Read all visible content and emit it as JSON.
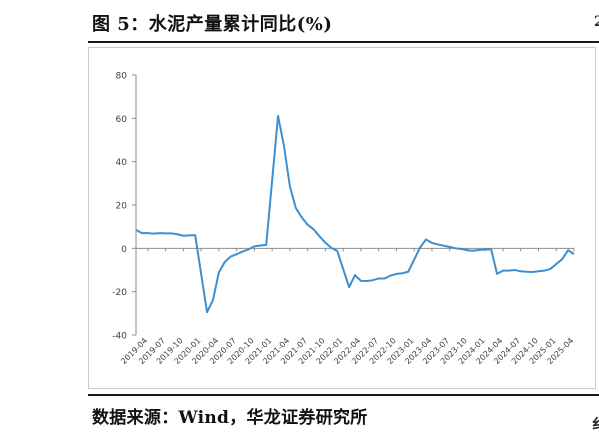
{
  "title": "图 5：水泥产量累计同比(%)",
  "source": "数据来源：Wind，华龙证券研究所",
  "edge_chars": {
    "top": "2",
    "bottom": "纟"
  },
  "colors": {
    "line": "#3d8fd0",
    "axis": "#8c8c8c",
    "tick_text": "#404040"
  },
  "chart_data": {
    "type": "line",
    "title": "",
    "xlabel": "",
    "ylabel": "",
    "ylim": [
      -40,
      80
    ],
    "yticks": [
      -40,
      -20,
      0,
      20,
      40,
      60,
      80
    ],
    "grid": false,
    "legend": "none",
    "xtick_labels": [
      "2019-04",
      "2019-07",
      "2019-10",
      "2020-01",
      "2020-04",
      "2020-07",
      "2020-10",
      "2021-01",
      "2021-04",
      "2021-07",
      "2021-10",
      "2022-01",
      "2022-04",
      "2022-07",
      "2022-10",
      "2023-01",
      "2023-04",
      "2023-07",
      "2023-10",
      "2024-01",
      "2024-04",
      "2024-07",
      "2024-10",
      "2025-01",
      "2025-04"
    ],
    "series": [
      {
        "name": "",
        "x": [
          "2019-02",
          "2019-03",
          "2019-04",
          "2019-05",
          "2019-06",
          "2019-07",
          "2019-08",
          "2019-09",
          "2019-10",
          "2019-11",
          "2019-12",
          "2020-02",
          "2020-03",
          "2020-04",
          "2020-05",
          "2020-06",
          "2020-07",
          "2020-08",
          "2020-09",
          "2020-10",
          "2020-11",
          "2020-12",
          "2021-02",
          "2021-03",
          "2021-04",
          "2021-05",
          "2021-06",
          "2021-07",
          "2021-08",
          "2021-09",
          "2021-10",
          "2021-11",
          "2021-12",
          "2022-02",
          "2022-03",
          "2022-04",
          "2022-05",
          "2022-06",
          "2022-07",
          "2022-08",
          "2022-09",
          "2022-10",
          "2022-11",
          "2022-12",
          "2023-02",
          "2023-03",
          "2023-04",
          "2023-05",
          "2023-06",
          "2023-07",
          "2023-08",
          "2023-09",
          "2023-10",
          "2023-11",
          "2023-12",
          "2024-02",
          "2024-03",
          "2024-04",
          "2024-05",
          "2024-06",
          "2024-07",
          "2024-08",
          "2024-09",
          "2024-10",
          "2024-11",
          "2024-12",
          "2025-02",
          "2025-03",
          "2025-04"
        ],
        "y": [
          8.5,
          7.0,
          7.0,
          6.8,
          7.0,
          6.9,
          6.9,
          6.5,
          5.8,
          6.0,
          6.1,
          -29.5,
          -23.9,
          -11.1,
          -6.3,
          -3.8,
          -2.7,
          -1.5,
          -0.5,
          0.9,
          1.3,
          1.6,
          61.1,
          47.3,
          28.6,
          18.6,
          14.3,
          10.9,
          8.8,
          5.5,
          2.6,
          0.2,
          -1.2,
          -17.9,
          -12.4,
          -15.0,
          -15.1,
          -14.7,
          -13.9,
          -13.9,
          -12.6,
          -11.8,
          -11.5,
          -10.8,
          0.4,
          4.1,
          2.5,
          1.8,
          1.2,
          0.6,
          0.0,
          -0.3,
          -0.9,
          -1.1,
          -0.7,
          -0.4,
          -11.8,
          -10.3,
          -10.3,
          -10.0,
          -10.6,
          -10.8,
          -10.9,
          -10.6,
          -10.3,
          -9.5,
          -5.0,
          -0.9,
          -2.6
        ]
      }
    ]
  }
}
